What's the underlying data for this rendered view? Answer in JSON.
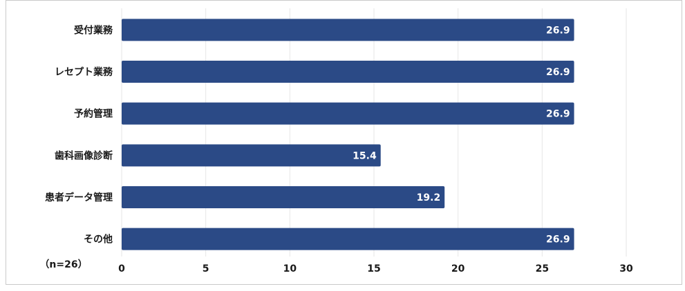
{
  "chart_data": {
    "type": "bar",
    "orientation": "horizontal",
    "categories": [
      "受付業務",
      "レセプト業務",
      "予約管理",
      "歯科画像診断",
      "患者データ管理",
      "その他"
    ],
    "values": [
      26.9,
      26.9,
      26.9,
      15.4,
      19.2,
      26.9
    ],
    "value_labels": [
      "26.9",
      "26.9",
      "26.9",
      "15.4",
      "19.2",
      "26.9"
    ],
    "xlim": [
      0,
      30
    ],
    "xticks": [
      0,
      5,
      10,
      15,
      20,
      25,
      30
    ],
    "xtick_labels": [
      "0",
      "5",
      "10",
      "15",
      "20",
      "25",
      "30"
    ],
    "grid": true,
    "bar_color": "#2b4a86",
    "note": "（n=26）"
  }
}
